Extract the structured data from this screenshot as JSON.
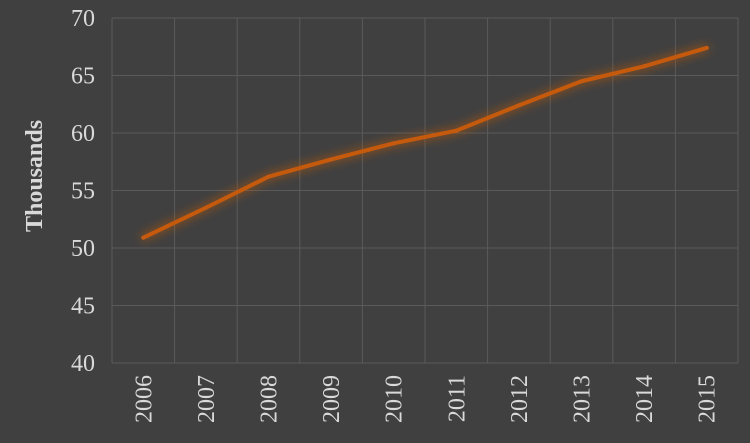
{
  "chart_data": {
    "type": "line",
    "title": "",
    "xlabel": "",
    "ylabel": "Thousands",
    "x": [
      "2006",
      "2007",
      "2008",
      "2009",
      "2010",
      "2011",
      "2012",
      "2013",
      "2014",
      "2015"
    ],
    "series": [
      {
        "values": [
          50.9,
          53.5,
          56.2,
          57.7,
          59.1,
          60.2,
          62.4,
          64.5,
          65.8,
          67.4
        ],
        "color": "#c55a11"
      }
    ],
    "ylim": [
      40,
      70
    ],
    "yticks": [
      "40",
      "45",
      "50",
      "55",
      "60",
      "65",
      "70"
    ],
    "grid": true,
    "background": "#404040"
  }
}
